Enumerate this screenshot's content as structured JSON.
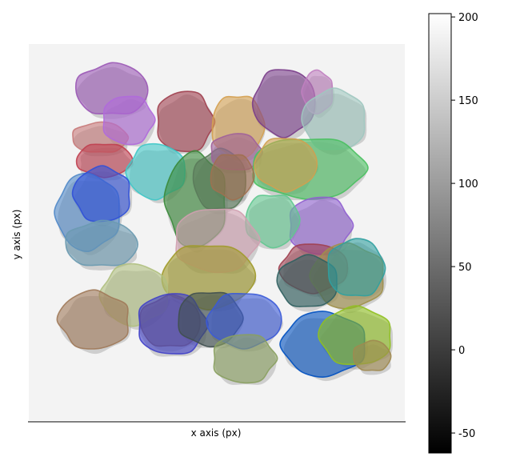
{
  "chart_data": {
    "type": "heatmap",
    "title": "",
    "xlabel": "x axis (px)",
    "ylabel": "y axis (px)",
    "colorbar": {
      "colormap": "gray",
      "range": [
        -62,
        202
      ],
      "ticks": [
        200,
        150,
        100,
        50,
        0,
        -50
      ]
    },
    "background_intensity": 195,
    "overlay": {
      "kind": "segmentation masks",
      "count": 37,
      "fill_opacity": 0.6,
      "colors": [
        "#9b59b6",
        "#a0404f",
        "#d4a050",
        "#7a3d8a",
        "#c080c0",
        "#a0c8c0",
        "#c87a7a",
        "#b06adb",
        "#c04050",
        "#40c8c8",
        "#3a8a3a",
        "#5a7a5a",
        "#a0609a",
        "#4ac060",
        "#d0a050",
        "#5088c8",
        "#3050d8",
        "#6a9ab0",
        "#9060d0",
        "#60c890",
        "#a04050",
        "#a0904a",
        "#306060",
        "#30a0a0",
        "#d0a0b0",
        "#a09a2a",
        "#b0c080",
        "#a07a5a",
        "#8a6a5a",
        "#4040c8",
        "#405050",
        "#3a5ad8",
        "#0050c0",
        "#90c020",
        "#a08a50",
        "#8aa060",
        "#a07050"
      ]
    }
  }
}
